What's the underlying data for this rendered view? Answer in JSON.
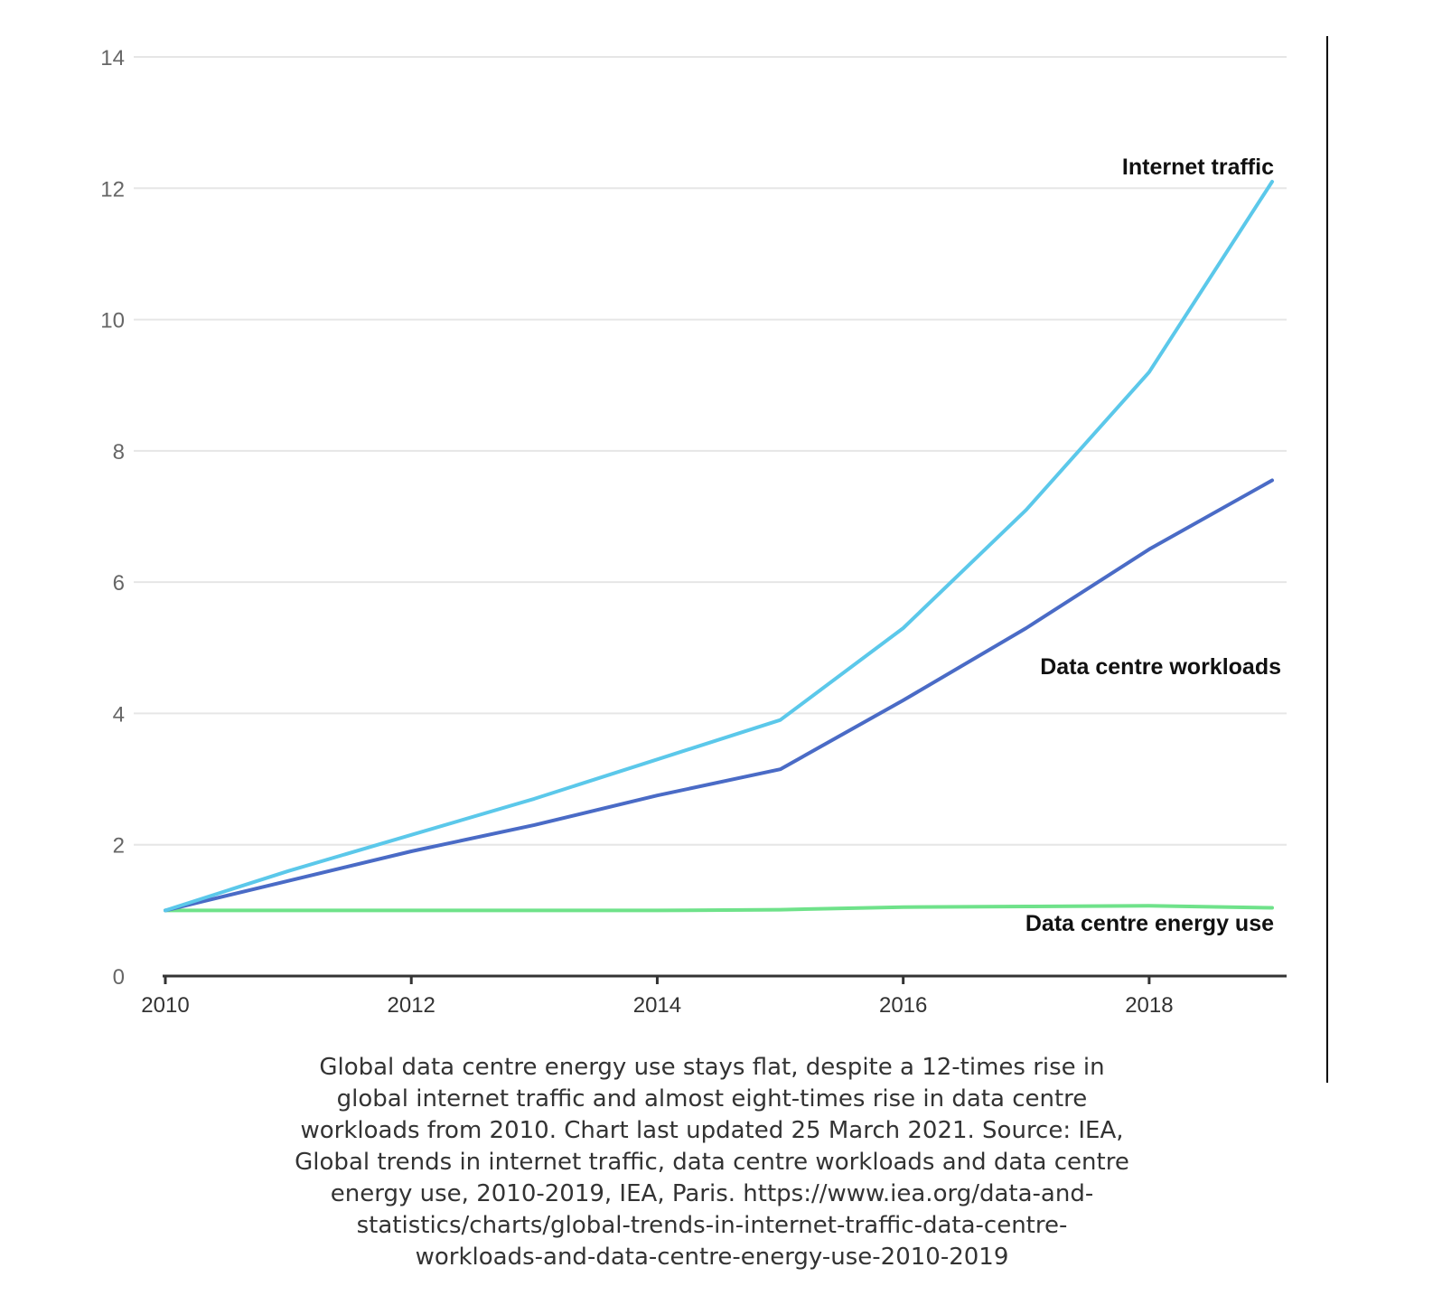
{
  "chart_data": {
    "type": "line",
    "title": "",
    "xlabel": "",
    "ylabel": "",
    "x": [
      2010,
      2011,
      2012,
      2013,
      2014,
      2015,
      2016,
      2017,
      2018,
      2019
    ],
    "xticks": [
      2010,
      2012,
      2014,
      2016,
      2018
    ],
    "xticks_text": [
      "2010",
      "2012",
      "2014",
      "2016",
      "2018"
    ],
    "xlim": [
      2010,
      2019
    ],
    "yticks": [
      0,
      2,
      4,
      6,
      8,
      10,
      12,
      14
    ],
    "yticks_text": [
      "0",
      "2",
      "4",
      "6",
      "8",
      "10",
      "12",
      "14"
    ],
    "ylim": [
      0,
      14
    ],
    "grid": true,
    "series": [
      {
        "name": "Internet traffic",
        "color": "#5bc8ea",
        "values": [
          1.0,
          1.6,
          2.15,
          2.7,
          3.3,
          3.9,
          5.3,
          7.1,
          9.2,
          12.1
        ]
      },
      {
        "name": "Data centre workloads",
        "color": "#4a6bc6",
        "values": [
          1.0,
          1.45,
          1.9,
          2.3,
          2.75,
          3.15,
          4.2,
          5.3,
          6.5,
          7.55
        ]
      },
      {
        "name": "Data centre energy use",
        "color": "#6fe28a",
        "values": [
          1.0,
          1.0,
          1.0,
          1.0,
          1.0,
          1.01,
          1.05,
          1.06,
          1.07,
          1.04
        ]
      }
    ]
  },
  "caption_lines": [
    "Global data centre energy use stays flat, despite a 12-times rise in",
    "global internet traffic and almost eight-times rise in data centre",
    "workloads from 2010. Chart last updated 25 March 2021. Source: IEA,",
    "Global trends in internet traffic, data centre workloads and data centre",
    "energy use, 2010-2019, IEA, Paris. https://www.iea.org/data-and-",
    "statistics/charts/global-trends-in-internet-traffic-data-centre-",
    "workloads-and-data-centre-energy-use-2010-2019"
  ]
}
